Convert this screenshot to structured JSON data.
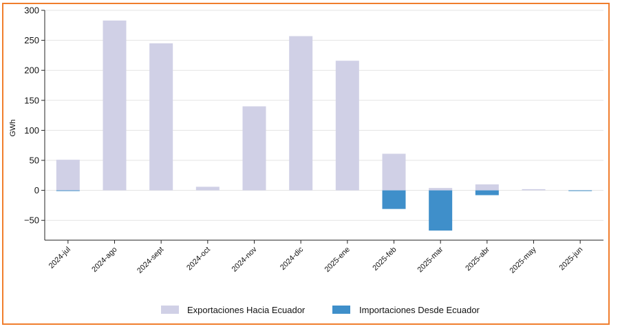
{
  "chart_data": {
    "type": "bar",
    "title": "",
    "xlabel": "",
    "ylabel": "GWh",
    "ylim": [
      -83,
      300
    ],
    "yticks": [
      -50,
      0,
      50,
      100,
      150,
      200,
      250,
      300
    ],
    "ytick_labels": [
      "−50",
      "0",
      "50",
      "100",
      "150",
      "200",
      "250",
      "300"
    ],
    "grid": "horizontal",
    "legend_position": "bottom",
    "categories": [
      "2024-jul",
      "2024-ago",
      "2024-sept",
      "2024-oct",
      "2024-nov",
      "2024-dic",
      "2025-ene",
      "2025-feb",
      "2025-mar",
      "2025-abr",
      "2025-may",
      "2025-jun"
    ],
    "series": [
      {
        "name": "Exportaciones Hacia Ecuador",
        "color": "#d0d0e6",
        "values": [
          51,
          283,
          245,
          6,
          140,
          257,
          216,
          61,
          4,
          10,
          2,
          0
        ]
      },
      {
        "name": "Importaciones Desde Ecuador",
        "color": "#3f8fca",
        "values": [
          -1,
          0,
          0,
          0,
          0,
          0,
          0,
          -31,
          -67,
          -8,
          0,
          -1
        ]
      }
    ]
  }
}
